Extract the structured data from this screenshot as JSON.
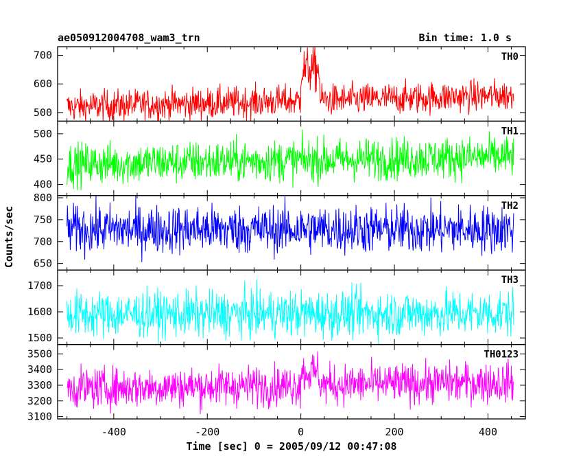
{
  "chart_data": {
    "type": "line",
    "title_left": "ae050912004708_wam3_trn",
    "title_right": "Bin time: 1.0 s",
    "xlabel": "Time [sec] 0 = 2005/09/12 00:47:08",
    "ylabel": "Counts/sec",
    "xlim": [
      -520,
      480
    ],
    "x_range": [
      -500,
      455
    ],
    "xticks": [
      -400,
      -200,
      0,
      200,
      400
    ],
    "panels": [
      {
        "name": "TH0",
        "color": "#ff0000",
        "ylim": [
          470,
          730
        ],
        "yticks": [
          500,
          600,
          700
        ],
        "baseline_start": 520,
        "baseline_end": 560,
        "noise": 28,
        "burst": [
          {
            "x0": 0,
            "x1": 40,
            "level": 650,
            "noise": 40
          }
        ]
      },
      {
        "name": "TH1",
        "color": "#00ff00",
        "ylim": [
          378,
          525
        ],
        "yticks": [
          400,
          450,
          500
        ],
        "baseline_start": 440,
        "baseline_end": 455,
        "noise": 21,
        "burst": []
      },
      {
        "name": "TH2",
        "color": "#0000ff",
        "ylim": [
          635,
          805
        ],
        "yticks": [
          650,
          700,
          750,
          800
        ],
        "baseline_start": 728,
        "baseline_end": 728,
        "noise": 28,
        "burst": []
      },
      {
        "name": "TH3",
        "color": "#00ffff",
        "ylim": [
          1475,
          1760
        ],
        "yticks": [
          1500,
          1600,
          1700
        ],
        "baseline_start": 1590,
        "baseline_end": 1595,
        "noise": 45,
        "burst": []
      },
      {
        "name": "TH0123",
        "color": "#ff00ff",
        "ylim": [
          3085,
          3560
        ],
        "yticks": [
          3100,
          3200,
          3300,
          3400,
          3500
        ],
        "baseline_start": 3280,
        "baseline_end": 3320,
        "noise": 65,
        "burst": [
          {
            "x0": 0,
            "x1": 40,
            "level": 3380,
            "noise": 70
          }
        ]
      }
    ]
  }
}
